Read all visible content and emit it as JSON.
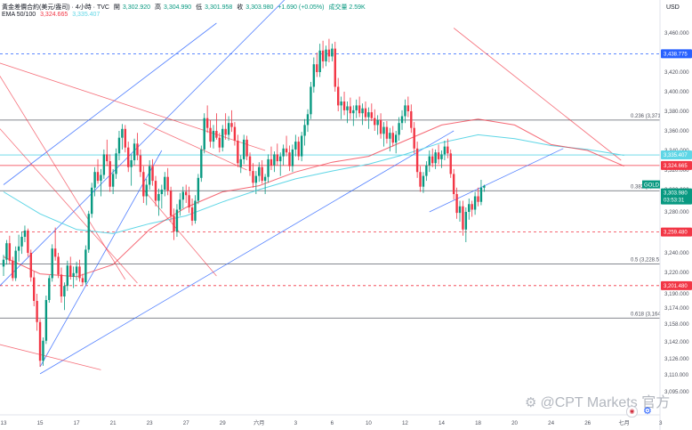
{
  "header": {
    "line1": {
      "symbol": "黃金差價合約(美元/盎司) · 4小時 · TVC",
      "open_label": "開",
      "open": "3,302.920",
      "high_label": "高",
      "high": "3,304.990",
      "low_label": "低",
      "low": "3,301.958",
      "close_label": "收",
      "close": "3,303.980",
      "change": "+1.690 (+0.05%)",
      "volume": "成交量 2.59K"
    },
    "line2": {
      "name": "EMA 50/100",
      "ema50": "3,324.665",
      "ema100": "3,335.407"
    },
    "currency": "USD"
  },
  "colors": {
    "up": "#089981",
    "down": "#f23645",
    "ema50": "#f23645",
    "ema100": "#5fd6e6",
    "trendline_blue": "#2962ff",
    "trendline_red": "#f23645",
    "fib": "#5d606b"
  },
  "price_tags": [
    {
      "value": "3,438.775",
      "kind": "line-blue"
    },
    {
      "value": "3,335.407",
      "kind": "ema100"
    },
    {
      "value": "3,324.665",
      "kind": "ema50"
    },
    {
      "value": "GOLD",
      "kind": "symbol"
    },
    {
      "value": "3,303.980",
      "kind": "last"
    },
    {
      "value": "03:53:31",
      "kind": "countdown"
    },
    {
      "value": "3,259.480",
      "kind": "line-red"
    },
    {
      "value": "3,201.480",
      "kind": "line-red"
    }
  ],
  "fib_levels": [
    {
      "label": "0.236 (3,371",
      "price": 3371
    },
    {
      "label": "0.382 (3,299",
      "price": 3299
    },
    {
      "label": "0.5 (3,228.5",
      "price": 3228.5
    },
    {
      "label": "0.618 (3,164",
      "price": 3164
    }
  ],
  "watermark": "@CPT Markets 官方",
  "chart_data": {
    "type": "candlestick",
    "title": "黃金差價合約(美元/盎司) · 4小時 · TVC",
    "ylabel": "USD",
    "ylim": [
      3095,
      3480
    ],
    "yticks": [
      3460,
      3440,
      3420,
      3400,
      3380,
      3360,
      3340,
      3320,
      3300,
      3280,
      3260,
      3240,
      3220,
      3190,
      3174,
      3158,
      3142,
      3126,
      3110,
      3095
    ],
    "ytick_labels": [
      "3,460.000",
      "3,440.000",
      "3,420.000",
      "3,400.000",
      "3,380.000",
      "3,360.000",
      "3,340.000",
      "3,320.000",
      "3,300.000",
      "3,280.000",
      "3,260.000",
      "3,240.000",
      "3,220.000",
      "3,190.000",
      "3,174.000",
      "3,158.000",
      "3,142.000",
      "3,126.000",
      "3,110.000",
      "3,095.000"
    ],
    "xticks": [
      {
        "label": "13",
        "x": 0
      },
      {
        "label": "15",
        "x": 12
      },
      {
        "label": "17",
        "x": 24
      },
      {
        "label": "21",
        "x": 36
      },
      {
        "label": "23",
        "x": 48
      },
      {
        "label": "27",
        "x": 60
      },
      {
        "label": "29",
        "x": 72
      },
      {
        "label": "六月",
        "x": 84
      },
      {
        "label": "3",
        "x": 96
      },
      {
        "label": "6",
        "x": 108
      },
      {
        "label": "10",
        "x": 120
      },
      {
        "label": "12",
        "x": 132
      },
      {
        "label": "14",
        "x": 144
      },
      {
        "label": "18",
        "x": 156
      },
      {
        "label": "20",
        "x": 168
      },
      {
        "label": "24",
        "x": 180
      },
      {
        "label": "26",
        "x": 192
      },
      {
        "label": "七月",
        "x": 204
      },
      {
        "label": "3",
        "x": 216
      }
    ],
    "xlim": [
      -1,
      224
    ],
    "candles": [
      [
        3226,
        3238,
        3215,
        3233
      ],
      [
        3233,
        3252,
        3228,
        3249
      ],
      [
        3249,
        3256,
        3229,
        3232
      ],
      [
        3232,
        3236,
        3208,
        3212
      ],
      [
        3212,
        3246,
        3208,
        3242
      ],
      [
        3242,
        3257,
        3231,
        3246
      ],
      [
        3246,
        3260,
        3239,
        3255
      ],
      [
        3255,
        3266,
        3250,
        3261
      ],
      [
        3261,
        3263,
        3236,
        3240
      ],
      [
        3240,
        3243,
        3207,
        3213
      ],
      [
        3213,
        3221,
        3176,
        3182
      ],
      [
        3182,
        3190,
        3152,
        3160
      ],
      [
        3160,
        3163,
        3118,
        3124
      ],
      [
        3124,
        3146,
        3119,
        3143
      ],
      [
        3143,
        3188,
        3140,
        3183
      ],
      [
        3183,
        3216,
        3180,
        3212
      ],
      [
        3212,
        3248,
        3207,
        3244
      ],
      [
        3244,
        3264,
        3232,
        3236
      ],
      [
        3236,
        3240,
        3212,
        3217
      ],
      [
        3217,
        3225,
        3180,
        3187
      ],
      [
        3187,
        3206,
        3172,
        3201
      ],
      [
        3201,
        3232,
        3194,
        3227
      ],
      [
        3227,
        3236,
        3210,
        3214
      ],
      [
        3214,
        3226,
        3198,
        3219
      ],
      [
        3219,
        3231,
        3209,
        3226
      ],
      [
        3226,
        3233,
        3207,
        3212
      ],
      [
        3212,
        3218,
        3201,
        3206
      ],
      [
        3206,
        3247,
        3203,
        3243
      ],
      [
        3243,
        3281,
        3240,
        3278
      ],
      [
        3278,
        3307,
        3274,
        3302
      ],
      [
        3302,
        3323,
        3294,
        3318
      ],
      [
        3318,
        3331,
        3306,
        3309
      ],
      [
        3309,
        3321,
        3294,
        3315
      ],
      [
        3315,
        3341,
        3311,
        3336
      ],
      [
        3336,
        3351,
        3324,
        3329
      ],
      [
        3329,
        3336,
        3298,
        3303
      ],
      [
        3303,
        3321,
        3296,
        3316
      ],
      [
        3316,
        3342,
        3311,
        3337
      ],
      [
        3337,
        3360,
        3330,
        3353
      ],
      [
        3353,
        3367,
        3341,
        3362
      ],
      [
        3362,
        3366,
        3338,
        3343
      ],
      [
        3343,
        3349,
        3318,
        3323
      ],
      [
        3323,
        3336,
        3304,
        3330
      ],
      [
        3330,
        3352,
        3325,
        3347
      ],
      [
        3347,
        3358,
        3330,
        3335
      ],
      [
        3335,
        3341,
        3313,
        3318
      ],
      [
        3318,
        3324,
        3288,
        3294
      ],
      [
        3294,
        3311,
        3286,
        3305
      ],
      [
        3305,
        3330,
        3300,
        3324
      ],
      [
        3324,
        3331,
        3304,
        3309
      ],
      [
        3309,
        3314,
        3285,
        3290
      ],
      [
        3290,
        3301,
        3276,
        3296
      ],
      [
        3296,
        3305,
        3283,
        3300
      ],
      [
        3300,
        3318,
        3294,
        3313
      ],
      [
        3313,
        3322,
        3295,
        3299
      ],
      [
        3299,
        3303,
        3270,
        3276
      ],
      [
        3276,
        3283,
        3252,
        3260
      ],
      [
        3260,
        3287,
        3255,
        3282
      ],
      [
        3282,
        3297,
        3276,
        3291
      ],
      [
        3291,
        3303,
        3283,
        3298
      ],
      [
        3298,
        3305,
        3288,
        3295
      ],
      [
        3295,
        3303,
        3279,
        3284
      ],
      [
        3284,
        3292,
        3266,
        3271
      ],
      [
        3271,
        3295,
        3268,
        3290
      ],
      [
        3290,
        3316,
        3287,
        3312
      ],
      [
        3312,
        3345,
        3308,
        3341
      ],
      [
        3341,
        3378,
        3337,
        3373
      ],
      [
        3373,
        3386,
        3358,
        3363
      ],
      [
        3363,
        3371,
        3343,
        3349
      ],
      [
        3349,
        3366,
        3342,
        3360
      ],
      [
        3360,
        3378,
        3351,
        3353
      ],
      [
        3353,
        3358,
        3338,
        3343
      ],
      [
        3343,
        3366,
        3339,
        3362
      ],
      [
        3362,
        3378,
        3351,
        3356
      ],
      [
        3356,
        3375,
        3350,
        3368
      ],
      [
        3368,
        3381,
        3359,
        3364
      ],
      [
        3364,
        3369,
        3345,
        3350
      ],
      [
        3350,
        3356,
        3323,
        3327
      ],
      [
        3323,
        3335,
        3317,
        3331
      ],
      [
        3331,
        3356,
        3326,
        3351
      ],
      [
        3351,
        3355,
        3330,
        3334
      ],
      [
        3334,
        3338,
        3314,
        3319
      ],
      [
        3319,
        3327,
        3302,
        3307
      ],
      [
        3307,
        3319,
        3296,
        3314
      ],
      [
        3314,
        3328,
        3308,
        3323
      ],
      [
        3323,
        3330,
        3306,
        3309
      ],
      [
        3309,
        3316,
        3296,
        3313
      ],
      [
        3313,
        3336,
        3307,
        3331
      ],
      [
        3331,
        3344,
        3320,
        3325
      ],
      [
        3325,
        3339,
        3318,
        3336
      ],
      [
        3336,
        3347,
        3325,
        3329
      ],
      [
        3329,
        3338,
        3314,
        3334
      ],
      [
        3334,
        3346,
        3325,
        3342
      ],
      [
        3342,
        3355,
        3334,
        3338
      ],
      [
        3338,
        3345,
        3319,
        3324
      ],
      [
        3324,
        3346,
        3318,
        3341
      ],
      [
        3341,
        3356,
        3334,
        3349
      ],
      [
        3349,
        3354,
        3330,
        3334
      ],
      [
        3334,
        3359,
        3329,
        3355
      ],
      [
        3355,
        3372,
        3345,
        3366
      ],
      [
        3366,
        3382,
        3359,
        3377
      ],
      [
        3377,
        3410,
        3372,
        3405
      ],
      [
        3405,
        3435,
        3399,
        3428
      ],
      [
        3428,
        3440,
        3415,
        3420
      ],
      [
        3420,
        3449,
        3415,
        3442
      ],
      [
        3442,
        3452,
        3424,
        3431
      ],
      [
        3431,
        3447,
        3426,
        3443
      ],
      [
        3443,
        3454,
        3430,
        3436
      ],
      [
        3436,
        3449,
        3431,
        3444
      ],
      [
        3444,
        3451,
        3400,
        3405
      ],
      [
        3405,
        3414,
        3380,
        3386
      ],
      [
        3386,
        3395,
        3372,
        3390
      ],
      [
        3390,
        3400,
        3376,
        3381
      ],
      [
        3381,
        3390,
        3368,
        3385
      ],
      [
        3385,
        3394,
        3372,
        3378
      ],
      [
        3378,
        3386,
        3365,
        3381
      ],
      [
        3381,
        3392,
        3373,
        3386
      ],
      [
        3386,
        3395,
        3374,
        3378
      ],
      [
        3378,
        3388,
        3366,
        3383
      ],
      [
        3383,
        3390,
        3370,
        3374
      ],
      [
        3374,
        3384,
        3362,
        3379
      ],
      [
        3379,
        3388,
        3370,
        3373
      ],
      [
        3373,
        3382,
        3360,
        3366
      ],
      [
        3366,
        3376,
        3356,
        3371
      ],
      [
        3371,
        3378,
        3352,
        3357
      ],
      [
        3357,
        3369,
        3344,
        3364
      ],
      [
        3364,
        3370,
        3347,
        3352
      ],
      [
        3352,
        3363,
        3339,
        3358
      ],
      [
        3358,
        3365,
        3344,
        3348
      ],
      [
        3348,
        3360,
        3337,
        3356
      ],
      [
        3356,
        3374,
        3350,
        3368
      ],
      [
        3368,
        3381,
        3361,
        3375
      ],
      [
        3375,
        3392,
        3368,
        3386
      ],
      [
        3386,
        3395,
        3374,
        3380
      ],
      [
        3380,
        3387,
        3358,
        3363
      ],
      [
        3363,
        3369,
        3337,
        3342
      ],
      [
        3342,
        3349,
        3312,
        3318
      ],
      [
        3318,
        3324,
        3298,
        3303
      ],
      [
        3303,
        3318,
        3297,
        3314
      ],
      [
        3314,
        3329,
        3309,
        3325
      ],
      [
        3325,
        3340,
        3318,
        3334
      ],
      [
        3334,
        3342,
        3323,
        3327
      ],
      [
        3327,
        3341,
        3321,
        3338
      ],
      [
        3338,
        3346,
        3326,
        3331
      ],
      [
        3331,
        3340,
        3322,
        3336
      ],
      [
        3336,
        3350,
        3330,
        3344
      ],
      [
        3344,
        3352,
        3332,
        3337
      ],
      [
        3337,
        3341,
        3312,
        3316
      ],
      [
        3316,
        3321,
        3291,
        3296
      ],
      [
        3296,
        3302,
        3273,
        3279
      ],
      [
        3279,
        3290,
        3270,
        3285
      ],
      [
        3285,
        3290,
        3256,
        3262
      ],
      [
        3262,
        3284,
        3250,
        3280
      ],
      [
        3280,
        3292,
        3272,
        3287
      ],
      [
        3287,
        3290,
        3275,
        3282
      ],
      [
        3282,
        3298,
        3277,
        3294
      ],
      [
        3294,
        3302,
        3285,
        3289
      ],
      [
        3289,
        3310,
        3286,
        3302
      ],
      [
        3302,
        3305,
        3298,
        3304
      ]
    ],
    "ema50": [
      [
        0,
        3236
      ],
      [
        12,
        3218
      ],
      [
        24,
        3214
      ],
      [
        36,
        3228
      ],
      [
        48,
        3262
      ],
      [
        60,
        3284
      ],
      [
        72,
        3298
      ],
      [
        84,
        3304
      ],
      [
        96,
        3318
      ],
      [
        108,
        3328
      ],
      [
        120,
        3334
      ],
      [
        132,
        3350
      ],
      [
        144,
        3366
      ],
      [
        156,
        3372
      ],
      [
        168,
        3366
      ],
      [
        180,
        3346
      ],
      [
        192,
        3340
      ],
      [
        204,
        3324
      ]
    ],
    "ema100": [
      [
        0,
        3298
      ],
      [
        12,
        3278
      ],
      [
        24,
        3262
      ],
      [
        36,
        3258
      ],
      [
        48,
        3268
      ],
      [
        60,
        3276
      ],
      [
        72,
        3289
      ],
      [
        84,
        3300
      ],
      [
        96,
        3311
      ],
      [
        108,
        3319
      ],
      [
        120,
        3326
      ],
      [
        132,
        3336
      ],
      [
        144,
        3348
      ],
      [
        156,
        3356
      ],
      [
        168,
        3352
      ],
      [
        180,
        3345
      ],
      [
        192,
        3341
      ],
      [
        204,
        3335
      ]
    ],
    "hlines": [
      {
        "price": 3438.775,
        "color": "#2962ff",
        "dash": true
      },
      {
        "price": 3371,
        "color": "#5d606b",
        "dash": false
      },
      {
        "price": 3335.407,
        "color": "#5fd6e6",
        "dash": false
      },
      {
        "price": 3324.665,
        "color": "#f23645",
        "dash": false
      },
      {
        "price": 3299,
        "color": "#5d606b",
        "dash": false
      },
      {
        "price": 3259.48,
        "color": "#f23645",
        "dash": true
      },
      {
        "price": 3228.5,
        "color": "#5d606b",
        "dash": false
      },
      {
        "price": 3201.48,
        "color": "#f23645",
        "dash": true
      },
      {
        "price": 3164,
        "color": "#5d606b",
        "dash": false
      }
    ],
    "trendlines_blue": [
      [
        [
          -2,
          3198
        ],
        [
          120,
          3580
        ]
      ],
      [
        [
          12,
          3111
        ],
        [
          148,
          3360
        ]
      ],
      [
        [
          0,
          3305
        ],
        [
          70,
          3470
        ]
      ],
      [
        [
          12,
          3118
        ],
        [
          52,
          3340
        ]
      ],
      [
        [
          140,
          3280
        ],
        [
          184,
          3342
        ]
      ]
    ],
    "trendlines_red": [
      [
        [
          -2,
          3430
        ],
        [
          86,
          3340
        ]
      ],
      [
        [
          -2,
          3420
        ],
        [
          40,
          3210
        ]
      ],
      [
        [
          -2,
          3140
        ],
        [
          32,
          3115
        ]
      ],
      [
        [
          -2,
          3365
        ],
        [
          44,
          3205
        ]
      ],
      [
        [
          46,
          3368
        ],
        [
          80,
          3320
        ]
      ],
      [
        [
          148,
          3465
        ],
        [
          203,
          3330
        ]
      ],
      [
        [
          46,
          3300
        ],
        [
          70,
          3215
        ]
      ]
    ]
  }
}
